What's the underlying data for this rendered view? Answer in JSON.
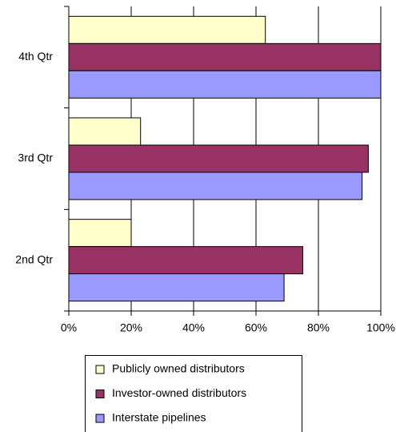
{
  "chart_data": {
    "type": "hbar",
    "categories": [
      "2nd Qtr",
      "3rd Qtr",
      "4th Qtr"
    ],
    "series": [
      {
        "name": "Publicly owned distributors",
        "color": "#ffffcc",
        "values": [
          20,
          23,
          63
        ]
      },
      {
        "name": "Investor-owned distributors",
        "color": "#993366",
        "values": [
          75,
          96,
          100
        ]
      },
      {
        "name": "Interstate pipelines",
        "color": "#9999ff",
        "values": [
          69,
          94,
          100
        ]
      }
    ],
    "xlim": [
      0,
      100
    ],
    "xticks": [
      {
        "value": 0,
        "label": "0%"
      },
      {
        "value": 20,
        "label": "20%"
      },
      {
        "value": 40,
        "label": "40%"
      },
      {
        "value": 60,
        "label": "60%"
      },
      {
        "value": 80,
        "label": "80%"
      },
      {
        "value": 100,
        "label": "100%"
      }
    ],
    "grid": true,
    "legend": "bottom"
  }
}
